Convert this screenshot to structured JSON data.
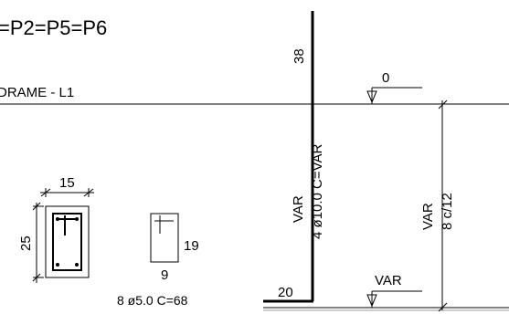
{
  "title": "=P2=P5=P6",
  "frame_label": "DRAME - L1",
  "section": {
    "width": "15",
    "height": "25"
  },
  "stirrup": {
    "height": "19",
    "width": "9",
    "spec": "8 ø5.0  C=68"
  },
  "longitudinal_bar": {
    "top_length": "38",
    "bottom_hook": "20",
    "length": "VAR",
    "spec": "4 ø10.0  C=VAR"
  },
  "stirrup_zone": {
    "length": "VAR",
    "spec": "8 c/12"
  },
  "levels": {
    "top": "0",
    "bottom": "VAR"
  }
}
